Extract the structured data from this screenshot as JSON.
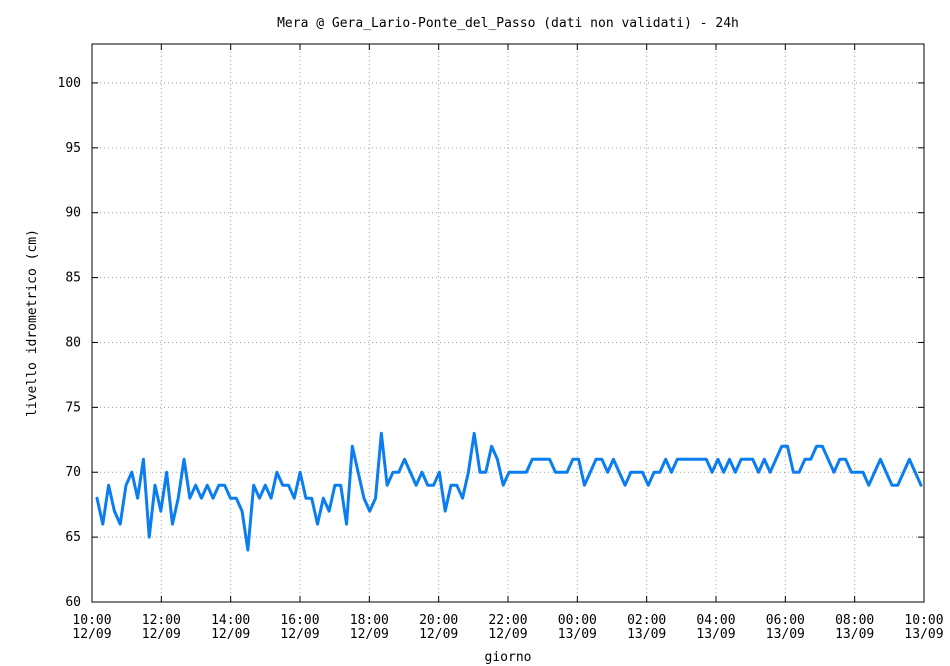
{
  "chart_data": {
    "type": "line",
    "title": "Mera @ Gera_Lario-Ponte_del_Passo (dati non validati) - 24h",
    "xlabel": "giorno",
    "ylabel": "livello idrometrico (cm)",
    "ylim": [
      60,
      103
    ],
    "yticks": [
      60,
      65,
      70,
      75,
      80,
      85,
      90,
      95,
      100
    ],
    "grid": true,
    "line_color": "#0a7ef0",
    "xtick_labels": [
      {
        "time": "10:00",
        "date": "12/09"
      },
      {
        "time": "12:00",
        "date": "12/09"
      },
      {
        "time": "14:00",
        "date": "12/09"
      },
      {
        "time": "16:00",
        "date": "12/09"
      },
      {
        "time": "18:00",
        "date": "12/09"
      },
      {
        "time": "20:00",
        "date": "12/09"
      },
      {
        "time": "22:00",
        "date": "12/09"
      },
      {
        "time": "00:00",
        "date": "13/09"
      },
      {
        "time": "02:00",
        "date": "13/09"
      },
      {
        "time": "04:00",
        "date": "13/09"
      },
      {
        "time": "06:00",
        "date": "13/09"
      },
      {
        "time": "08:00",
        "date": "13/09"
      },
      {
        "time": "10:00",
        "date": "13/09"
      }
    ],
    "series": [
      {
        "values": [
          68,
          66,
          69,
          67,
          66,
          69,
          70,
          68,
          71,
          65,
          69,
          67,
          70,
          66,
          68,
          71,
          68,
          69,
          68,
          69,
          68,
          69,
          69,
          68,
          68,
          67,
          64,
          69,
          68,
          69,
          68,
          70,
          69,
          69,
          68,
          70,
          68,
          68,
          66,
          68,
          67,
          69,
          69,
          66,
          72,
          70,
          68,
          67,
          68,
          73,
          69,
          70,
          70,
          71,
          70,
          69,
          70,
          69,
          69,
          70,
          67,
          69,
          69,
          68,
          70,
          73,
          70,
          70,
          72,
          71,
          69,
          70,
          70,
          70,
          70,
          71,
          71,
          71,
          71,
          70,
          70,
          70,
          71,
          71,
          69,
          70,
          71,
          71,
          70,
          71,
          70,
          69,
          70,
          70,
          70,
          69,
          70,
          70,
          71,
          70,
          71,
          71,
          71,
          71,
          71,
          71,
          70,
          71,
          70,
          71,
          70,
          71,
          71,
          71,
          70,
          71,
          70,
          71,
          72,
          72,
          70,
          70,
          71,
          71,
          72,
          72,
          71,
          70,
          71,
          71,
          70,
          70,
          70,
          69,
          70,
          71,
          70,
          69,
          69,
          70,
          71,
          70,
          69
        ]
      }
    ]
  }
}
